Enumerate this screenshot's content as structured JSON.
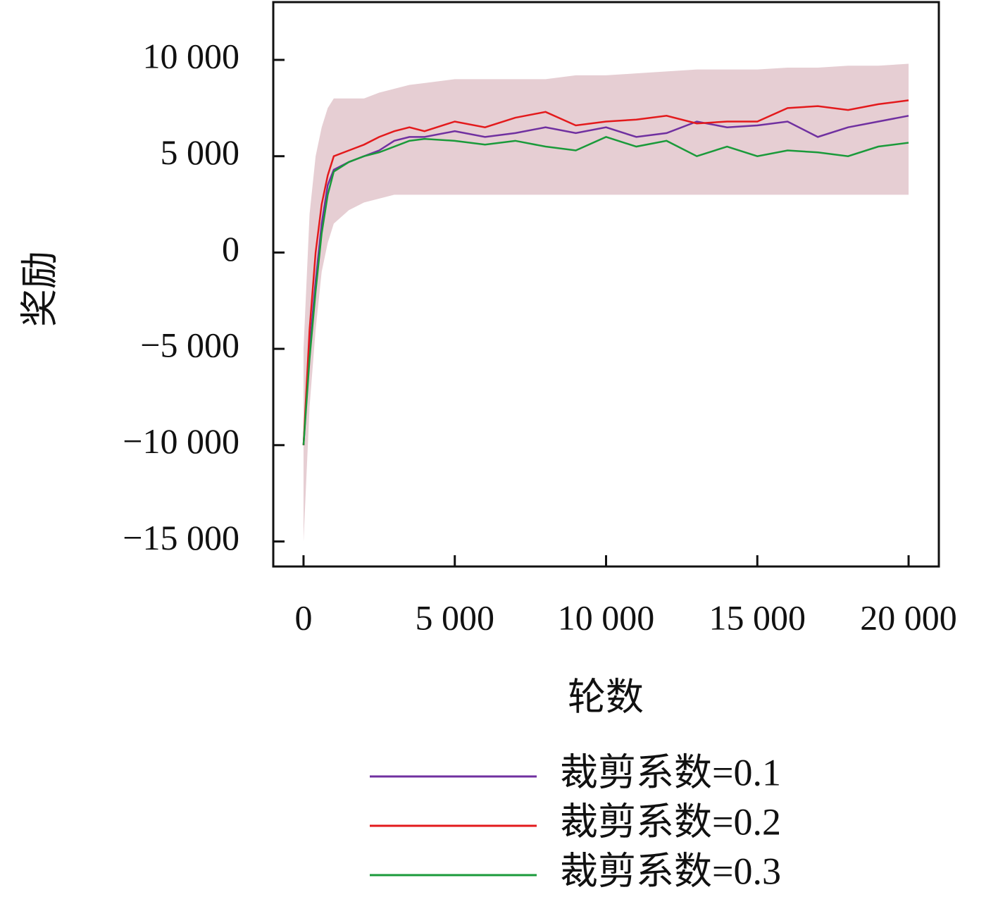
{
  "chart_data": {
    "type": "line",
    "xlabel": "轮数",
    "ylabel": "奖励",
    "xlim": [
      -1000,
      21000
    ],
    "ylim": [
      -16300,
      13000
    ],
    "xticks": [
      0,
      {
        "value": 5000,
        "label": "5 000"
      },
      {
        "value": 10000,
        "label": "10 000"
      },
      {
        "value": 15000,
        "label": "15 000"
      },
      {
        "value": 20000,
        "label": "20 000"
      }
    ],
    "yticks": [
      {
        "value": -15000,
        "label": "−15 000"
      },
      {
        "value": -10000,
        "label": "−10 000"
      },
      {
        "value": -5000,
        "label": "−5 000"
      },
      0,
      {
        "value": 5000,
        "label": "5 000"
      },
      {
        "value": 10000,
        "label": "10 000"
      }
    ],
    "grid": false,
    "x": [
      0,
      200,
      400,
      600,
      800,
      1000,
      1500,
      2000,
      2500,
      3000,
      3500,
      4000,
      5000,
      6000,
      7000,
      8000,
      9000,
      10000,
      11000,
      12000,
      13000,
      14000,
      15000,
      16000,
      17000,
      18000,
      19000,
      20000
    ],
    "band": {
      "color": "#d8b4bc",
      "lower": [
        -15000,
        -8000,
        -4000,
        -1000,
        500,
        1500,
        2200,
        2600,
        2800,
        3000,
        3000,
        3000,
        3000,
        3000,
        3000,
        3000,
        3000,
        3000,
        3000,
        3000,
        3000,
        3000,
        3000,
        3000,
        3000,
        3000,
        3000,
        3000
      ],
      "upper": [
        -5000,
        2000,
        5000,
        6500,
        7500,
        8000,
        8000,
        8000,
        8300,
        8500,
        8700,
        8800,
        9000,
        9000,
        9000,
        9000,
        9200,
        9200,
        9300,
        9400,
        9500,
        9500,
        9500,
        9600,
        9600,
        9700,
        9700,
        9800
      ]
    },
    "series": [
      {
        "name": "裁剪系数=0.1",
        "color": "#7030a0",
        "values": [
          -10000,
          -5000,
          -1500,
          1500,
          3500,
          4300,
          4700,
          5000,
          5300,
          5800,
          6000,
          6000,
          6300,
          6000,
          6200,
          6500,
          6200,
          6500,
          6000,
          6200,
          6800,
          6500,
          6600,
          6800,
          6000,
          6500,
          6800,
          7100
        ]
      },
      {
        "name": "裁剪系数=0.2",
        "color": "#e31a1c",
        "values": [
          -10000,
          -4000,
          0,
          2500,
          4000,
          5000,
          5300,
          5600,
          6000,
          6300,
          6500,
          6300,
          6800,
          6500,
          7000,
          7300,
          6600,
          6800,
          6900,
          7100,
          6700,
          6800,
          6800,
          7500,
          7600,
          7400,
          7700,
          7900
        ]
      },
      {
        "name": "裁剪系数=0.3",
        "color": "#1a9a3a",
        "values": [
          -10000,
          -5500,
          -2000,
          1000,
          3000,
          4200,
          4700,
          5000,
          5200,
          5500,
          5800,
          5900,
          5800,
          5600,
          5800,
          5500,
          5300,
          6000,
          5500,
          5800,
          5000,
          5500,
          5000,
          5300,
          5200,
          5000,
          5500,
          5700
        ]
      }
    ]
  }
}
